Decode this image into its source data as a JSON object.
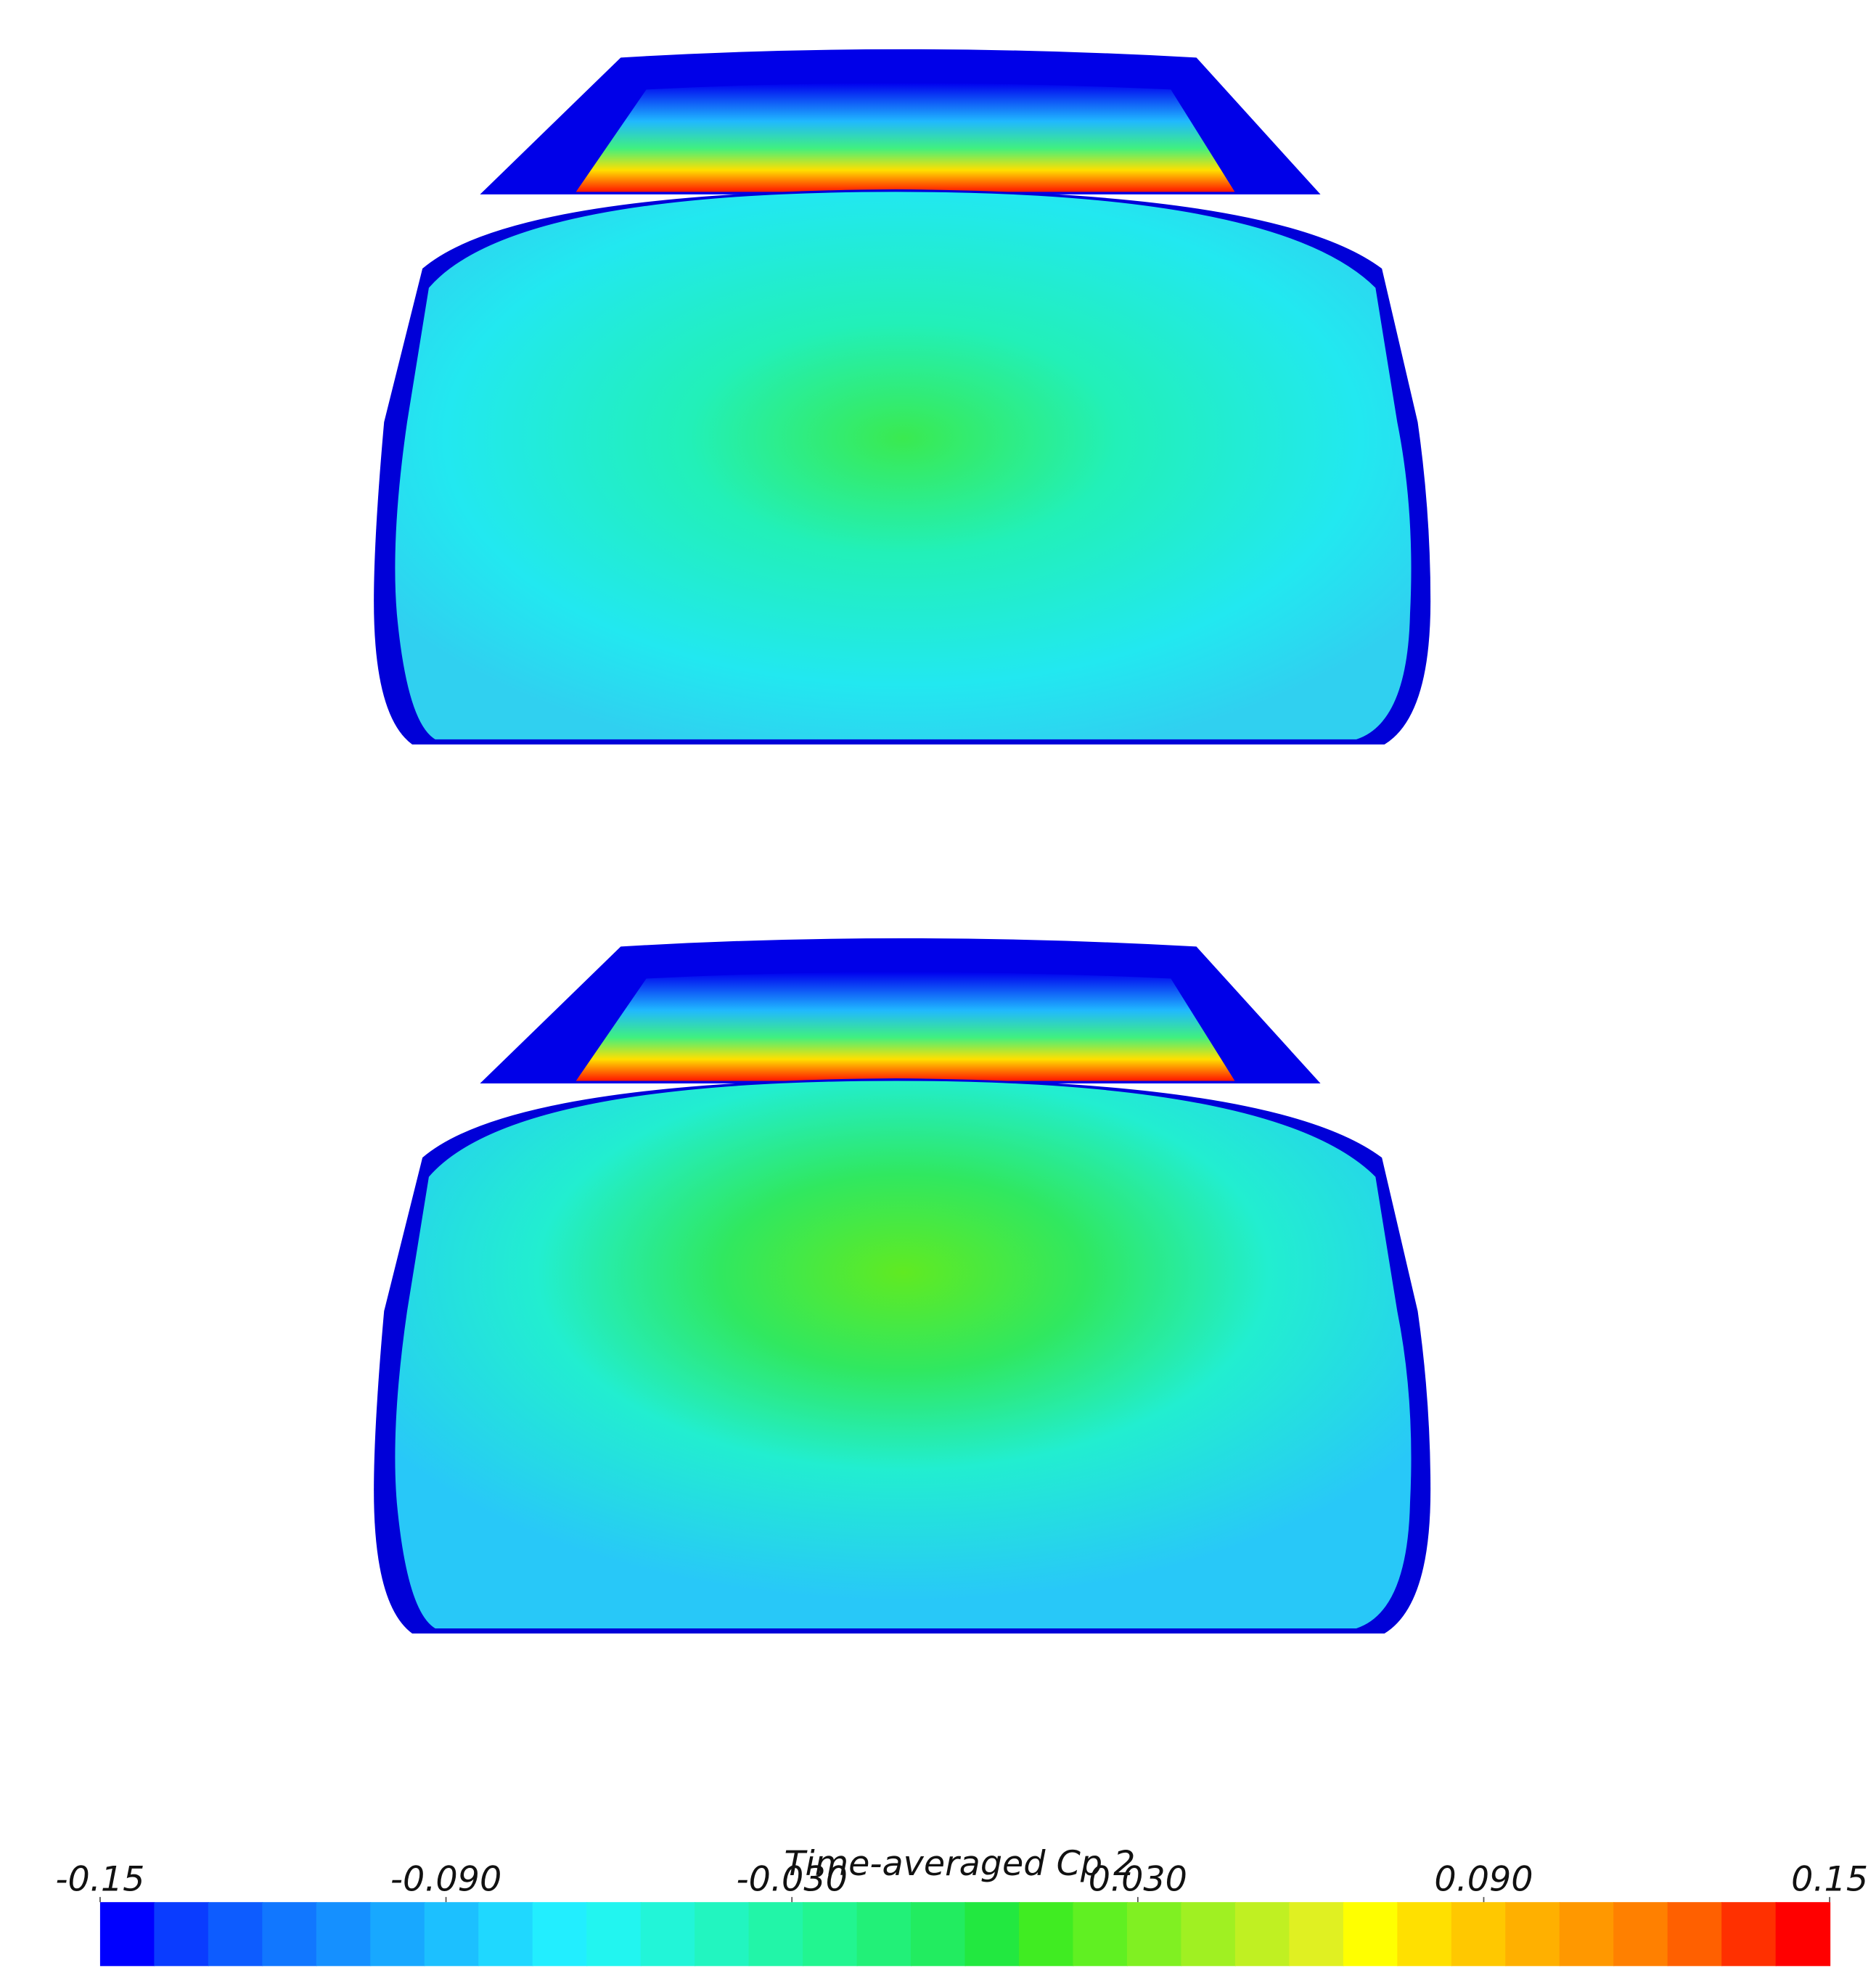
{
  "chart_data": {
    "type": "colorbar",
    "title": "Time-averaged Cp 2",
    "xlim": [
      -0.15,
      0.15
    ],
    "xticks": [
      -0.15,
      {
        "value": -0.09,
        "label": "-0.090"
      },
      {
        "value": -0.03,
        "label": "-0.030"
      },
      {
        "value": 0.03,
        "label": "0.030"
      },
      {
        "value": 0.09,
        "label": "0.090"
      },
      0.15
    ],
    "colors": [
      "#0000ff",
      "#0a3cff",
      "#0d5cff",
      "#1177ff",
      "#1590ff",
      "#18a8ff",
      "#1cc0ff",
      "#1fd8ff",
      "#22eeff",
      "#22f5f0",
      "#22f5d8",
      "#22f5c0",
      "#22f5a8",
      "#22f590",
      "#22f078",
      "#22ec60",
      "#22e840",
      "#40ec22",
      "#60f022",
      "#80f022",
      "#a0f022",
      "#c0f022",
      "#e0f022",
      "#ffff00",
      "#ffe000",
      "#ffc800",
      "#ffb000",
      "#ff9800",
      "#ff8000",
      "#ff6000",
      "#ff3000",
      "#ff0000"
    ]
  }
}
